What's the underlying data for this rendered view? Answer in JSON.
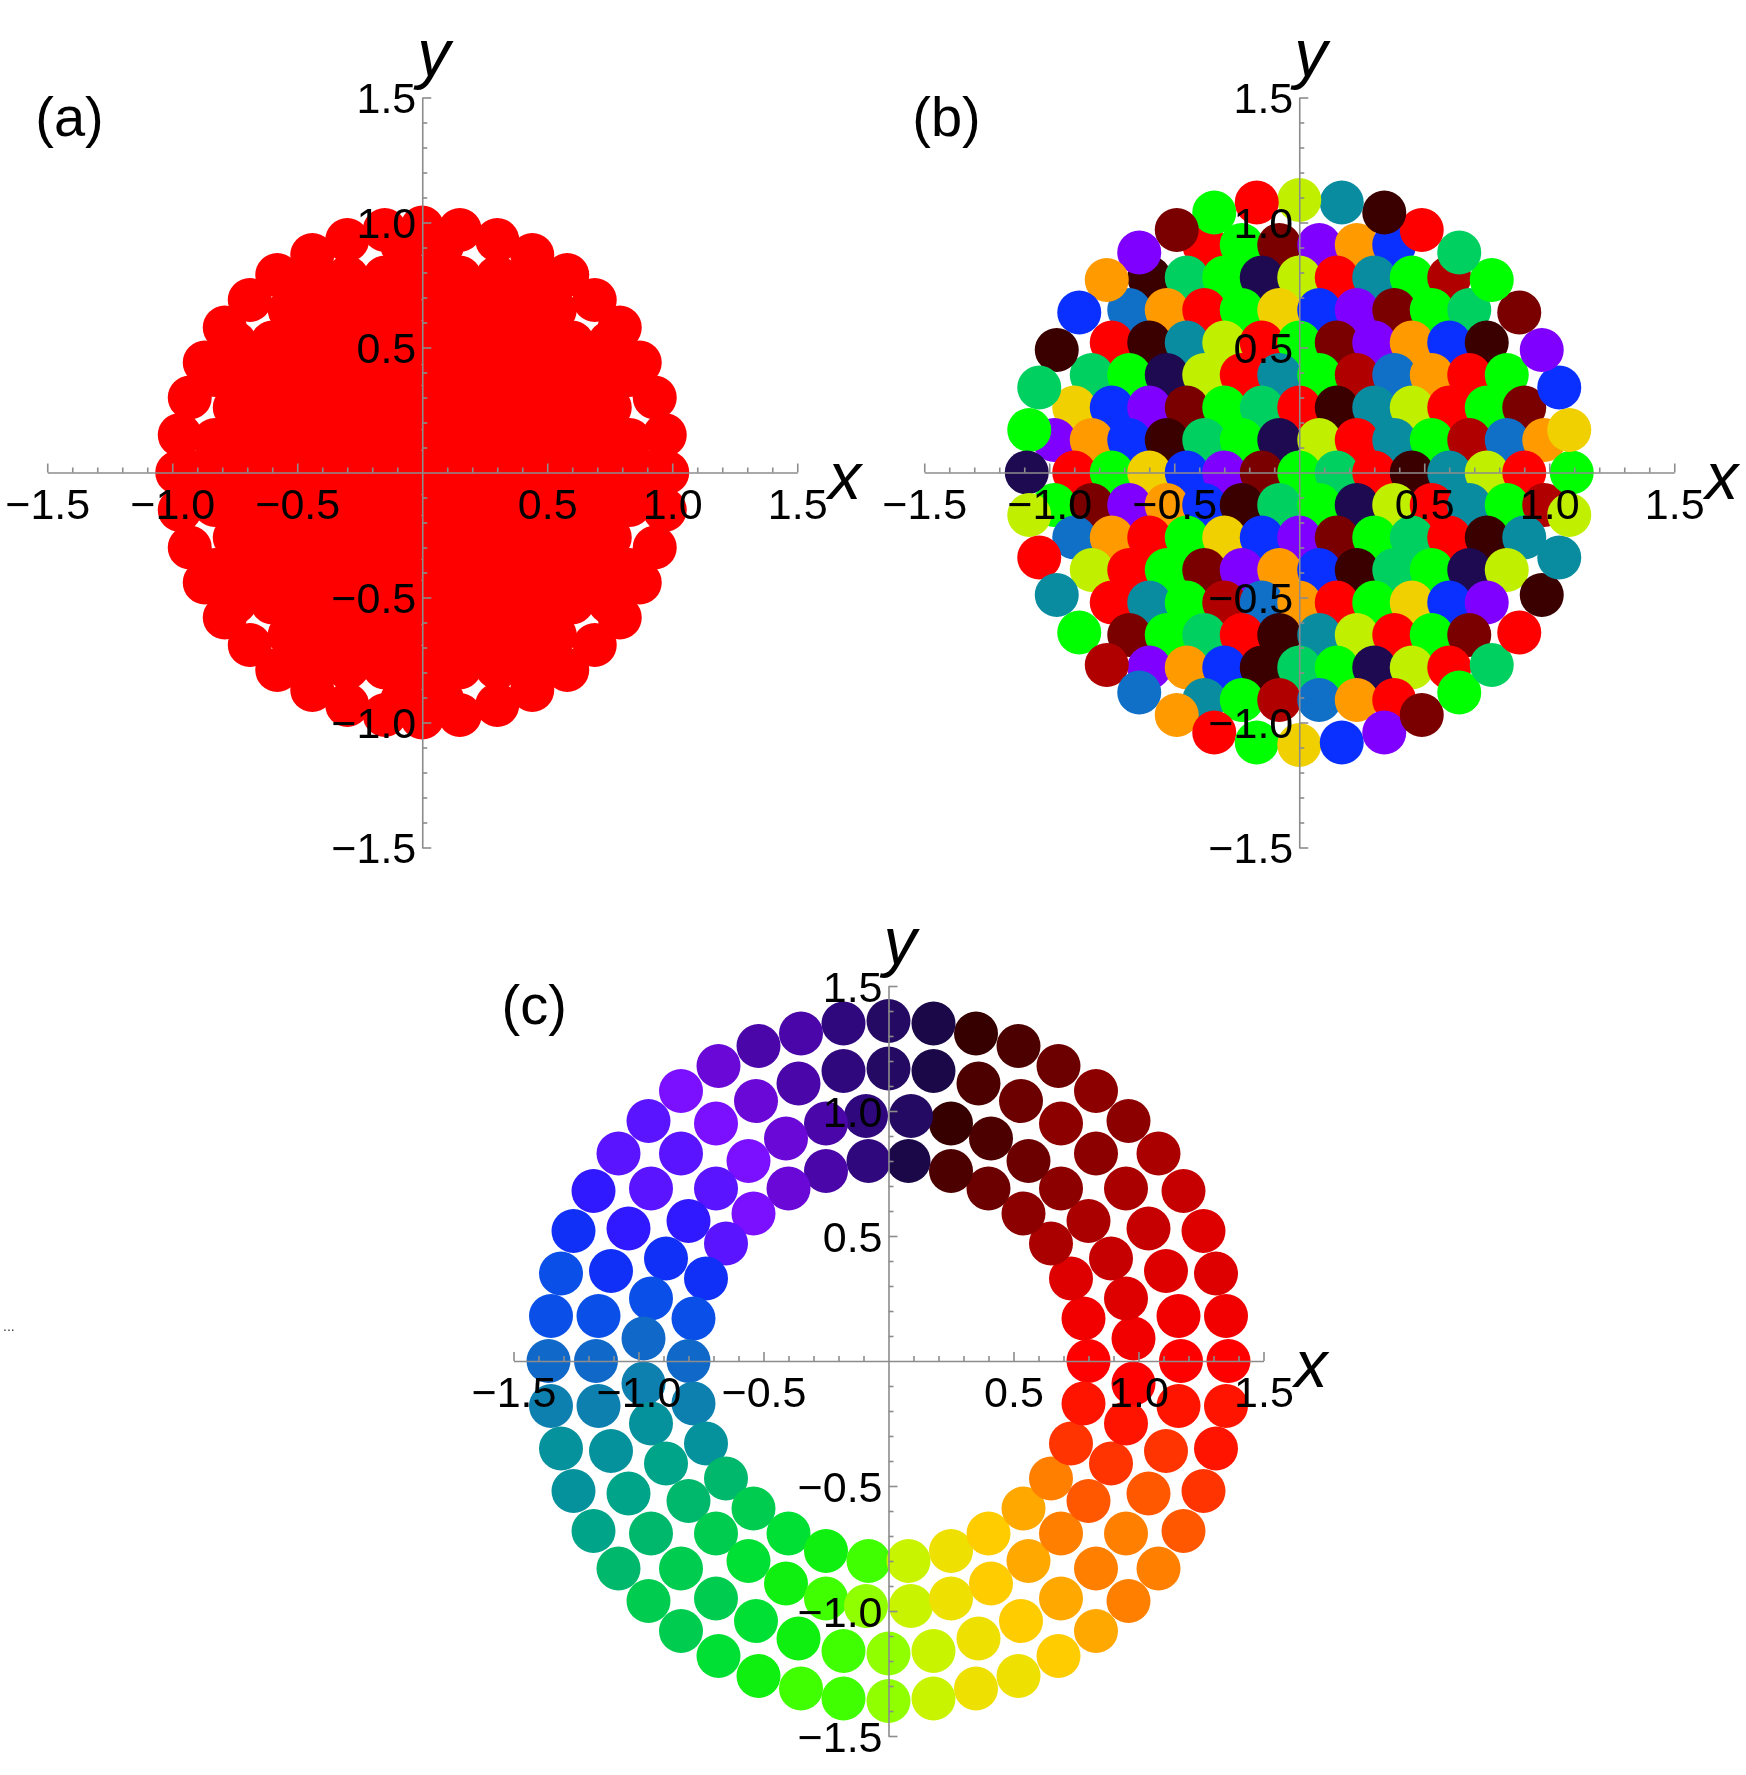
{
  "chart_data": [
    {
      "type": "scatter",
      "title": "(a)",
      "xlabel": "x",
      "ylabel": "y",
      "xlim": [
        -1.5,
        1.5
      ],
      "ylim": [
        -1.5,
        1.5
      ],
      "xticks": [
        {
          "value": -1.5,
          "label": "−1.5"
        },
        {
          "value": -1.4,
          "label": null
        },
        {
          "value": -1.3,
          "label": null
        },
        {
          "value": -1.2,
          "label": null
        },
        {
          "value": -1.1,
          "label": null
        },
        {
          "value": -1,
          "label": "−1.0"
        },
        {
          "value": -0.9,
          "label": null
        },
        {
          "value": -0.8,
          "label": null
        },
        {
          "value": -0.7,
          "label": null
        },
        {
          "value": -0.6,
          "label": null
        },
        {
          "value": -0.5,
          "label": "−0.5"
        },
        {
          "value": -0.4,
          "label": null
        },
        {
          "value": -0.3,
          "label": null
        },
        {
          "value": -0.2,
          "label": null
        },
        {
          "value": -0.1,
          "label": null
        },
        {
          "value": 0.1,
          "label": null
        },
        {
          "value": 0.2,
          "label": null
        },
        {
          "value": 0.3,
          "label": null
        },
        {
          "value": 0.4,
          "label": null
        },
        {
          "value": 0.5,
          "label": "0.5"
        },
        {
          "value": 0.6,
          "label": null
        },
        {
          "value": 0.7,
          "label": null
        },
        {
          "value": 0.8,
          "label": null
        },
        {
          "value": 0.9,
          "label": null
        },
        {
          "value": 1,
          "label": "1.0"
        },
        {
          "value": 1.1,
          "label": null
        },
        {
          "value": 1.2,
          "label": null
        },
        {
          "value": 1.3,
          "label": null
        },
        {
          "value": 1.4,
          "label": null
        },
        {
          "value": 1.5,
          "label": "1.5"
        }
      ],
      "yticks": [
        {
          "value": -1.5,
          "label": "−1.5"
        },
        {
          "value": -1.4,
          "label": null
        },
        {
          "value": -1.3,
          "label": null
        },
        {
          "value": -1.2,
          "label": null
        },
        {
          "value": -1.1,
          "label": null
        },
        {
          "value": -1,
          "label": "−1.0"
        },
        {
          "value": -0.9,
          "label": null
        },
        {
          "value": -0.8,
          "label": null
        },
        {
          "value": -0.7,
          "label": null
        },
        {
          "value": -0.6,
          "label": null
        },
        {
          "value": -0.5,
          "label": "−0.5"
        },
        {
          "value": -0.4,
          "label": null
        },
        {
          "value": -0.3,
          "label": null
        },
        {
          "value": -0.2,
          "label": null
        },
        {
          "value": -0.1,
          "label": null
        },
        {
          "value": 0.1,
          "label": null
        },
        {
          "value": 0.2,
          "label": null
        },
        {
          "value": 0.3,
          "label": null
        },
        {
          "value": 0.4,
          "label": null
        },
        {
          "value": 0.5,
          "label": "0.5"
        },
        {
          "value": 0.6,
          "label": null
        },
        {
          "value": 0.7,
          "label": null
        },
        {
          "value": 0.8,
          "label": null
        },
        {
          "value": 0.9,
          "label": null
        },
        {
          "value": 1,
          "label": "1.0"
        },
        {
          "value": 1.1,
          "label": null
        },
        {
          "value": 1.2,
          "label": null
        },
        {
          "value": 1.3,
          "label": null
        },
        {
          "value": 1.4,
          "label": null
        },
        {
          "value": 1.5,
          "label": "1.5"
        }
      ],
      "marker": "circle",
      "color": "#ff0000",
      "x": [
        -0.08,
        0.08,
        -0.45,
        -0.3,
        -0.15,
        0,
        0.15,
        0.3,
        0.45,
        -0.53,
        -0.38,
        -0.23,
        -0.08,
        0.08,
        0.23,
        0.38,
        0.53,
        -0.75,
        -0.6,
        -0.45,
        -0.3,
        -0.15,
        0,
        0.15,
        0.3,
        0.45,
        0.6,
        0.75,
        -0.83,
        -0.68,
        -0.53,
        -0.38,
        -0.23,
        -0.08,
        0.08,
        0.23,
        0.38,
        0.53,
        0.68,
        0.83,
        -0.75,
        -0.6,
        -0.45,
        -0.3,
        -0.15,
        0,
        0.15,
        0.3,
        0.45,
        0.6,
        0.75,
        -0.83,
        -0.68,
        -0.53,
        -0.38,
        -0.23,
        -0.08,
        0.08,
        0.23,
        0.38,
        0.53,
        0.68,
        0.83,
        -0.9,
        -0.75,
        -0.6,
        -0.45,
        -0.3,
        -0.15,
        0,
        0.15,
        0.3,
        0.45,
        0.6,
        0.75,
        0.9,
        -0.83,
        -0.68,
        -0.53,
        -0.38,
        -0.23,
        -0.08,
        0.08,
        0.23,
        0.38,
        0.53,
        0.68,
        0.83,
        -0.75,
        -0.6,
        -0.45,
        -0.3,
        -0.15,
        0,
        0.15,
        0.3,
        0.45,
        0.6,
        0.75,
        -0.83,
        -0.68,
        -0.53,
        -0.38,
        -0.23,
        -0.08,
        0.08,
        0.23,
        0.38,
        0.53,
        0.68,
        0.83,
        -0.75,
        -0.6,
        -0.45,
        -0.3,
        -0.15,
        0,
        0.15,
        0.3,
        0.45,
        0.6,
        0.75,
        -0.53,
        -0.38,
        -0.23,
        -0.08,
        0.08,
        0.23,
        0.38,
        0.53,
        -0.45,
        -0.3,
        -0.15,
        0,
        0.15,
        0.3,
        0.45,
        -0.08,
        0.08,
        0.98,
        0.97,
        0.93,
        0.87,
        0.79,
        0.69,
        0.58,
        0.44,
        0.3,
        0.15,
        0,
        -0.15,
        -0.3,
        -0.44,
        -0.58,
        -0.69,
        -0.79,
        -0.87,
        -0.93,
        -0.97,
        -0.98,
        -0.97,
        -0.93,
        -0.87,
        -0.79,
        -0.69,
        -0.58,
        -0.44,
        -0.3,
        -0.15,
        0,
        0.15,
        0.3,
        0.44,
        0.58,
        0.69,
        0.79,
        0.87,
        0.93,
        0.97
      ],
      "values": [
        0.91,
        0.91,
        0.78,
        0.78,
        0.78,
        0.78,
        0.78,
        0.78,
        0.78,
        0.65,
        0.65,
        0.65,
        0.65,
        0.65,
        0.65,
        0.65,
        0.65,
        0.52,
        0.52,
        0.52,
        0.52,
        0.52,
        0.52,
        0.52,
        0.52,
        0.52,
        0.52,
        0.52,
        0.39,
        0.39,
        0.39,
        0.39,
        0.39,
        0.39,
        0.39,
        0.39,
        0.39,
        0.39,
        0.39,
        0.39,
        0.26,
        0.26,
        0.26,
        0.26,
        0.26,
        0.26,
        0.26,
        0.26,
        0.26,
        0.26,
        0.26,
        0.13,
        0.13,
        0.13,
        0.13,
        0.13,
        0.13,
        0.13,
        0.13,
        0.13,
        0.13,
        0.13,
        0.13,
        0,
        0,
        0,
        0,
        0,
        0,
        0,
        0,
        0,
        0,
        0,
        0,
        0,
        -0.13,
        -0.13,
        -0.13,
        -0.13,
        -0.13,
        -0.13,
        -0.13,
        -0.13,
        -0.13,
        -0.13,
        -0.13,
        -0.13,
        -0.26,
        -0.26,
        -0.26,
        -0.26,
        -0.26,
        -0.26,
        -0.26,
        -0.26,
        -0.26,
        -0.26,
        -0.26,
        -0.39,
        -0.39,
        -0.39,
        -0.39,
        -0.39,
        -0.39,
        -0.39,
        -0.39,
        -0.39,
        -0.39,
        -0.39,
        -0.39,
        -0.52,
        -0.52,
        -0.52,
        -0.52,
        -0.52,
        -0.52,
        -0.52,
        -0.52,
        -0.52,
        -0.52,
        -0.52,
        -0.65,
        -0.65,
        -0.65,
        -0.65,
        -0.65,
        -0.65,
        -0.65,
        -0.65,
        -0.78,
        -0.78,
        -0.78,
        -0.78,
        -0.78,
        -0.78,
        -0.78,
        -0.91,
        -0.91,
        0,
        0.15,
        0.3,
        0.44,
        0.58,
        0.69,
        0.79,
        0.87,
        0.93,
        0.97,
        0.98,
        0.97,
        0.93,
        0.87,
        0.79,
        0.69,
        0.58,
        0.44,
        0.3,
        0.15,
        0,
        -0.15,
        -0.3,
        -0.44,
        -0.58,
        -0.69,
        -0.79,
        -0.87,
        -0.93,
        -0.97,
        -0.98,
        -0.97,
        -0.93,
        -0.87,
        -0.79,
        -0.69,
        -0.58,
        -0.44,
        -0.3,
        -0.15
      ]
    },
    {
      "type": "scatter",
      "title": "(b)",
      "xlabel": "x",
      "ylabel": "y",
      "xlim": [
        -1.5,
        1.5
      ],
      "ylim": [
        -1.5,
        1.5
      ],
      "xticks": [
        {
          "value": -1.5,
          "label": "−1.5"
        },
        {
          "value": -1.4,
          "label": null
        },
        {
          "value": -1.3,
          "label": null
        },
        {
          "value": -1.2,
          "label": null
        },
        {
          "value": -1.1,
          "label": null
        },
        {
          "value": -1,
          "label": "−1.0"
        },
        {
          "value": -0.9,
          "label": null
        },
        {
          "value": -0.8,
          "label": null
        },
        {
          "value": -0.7,
          "label": null
        },
        {
          "value": -0.6,
          "label": null
        },
        {
          "value": -0.5,
          "label": "−0.5"
        },
        {
          "value": -0.4,
          "label": null
        },
        {
          "value": -0.3,
          "label": null
        },
        {
          "value": -0.2,
          "label": null
        },
        {
          "value": -0.1,
          "label": null
        },
        {
          "value": 0.1,
          "label": null
        },
        {
          "value": 0.2,
          "label": null
        },
        {
          "value": 0.3,
          "label": null
        },
        {
          "value": 0.4,
          "label": null
        },
        {
          "value": 0.5,
          "label": "0.5"
        },
        {
          "value": 0.6,
          "label": null
        },
        {
          "value": 0.7,
          "label": null
        },
        {
          "value": 0.8,
          "label": null
        },
        {
          "value": 0.9,
          "label": null
        },
        {
          "value": 1,
          "label": "1.0"
        },
        {
          "value": 1.1,
          "label": null
        },
        {
          "value": 1.2,
          "label": null
        },
        {
          "value": 1.3,
          "label": null
        },
        {
          "value": 1.4,
          "label": null
        },
        {
          "value": 1.5,
          "label": "1.5"
        }
      ],
      "yticks": [
        {
          "value": -1.5,
          "label": "−1.5"
        },
        {
          "value": -1.4,
          "label": null
        },
        {
          "value": -1.3,
          "label": null
        },
        {
          "value": -1.2,
          "label": null
        },
        {
          "value": -1.1,
          "label": null
        },
        {
          "value": -1,
          "label": "−1.0"
        },
        {
          "value": -0.9,
          "label": null
        },
        {
          "value": -0.8,
          "label": null
        },
        {
          "value": -0.7,
          "label": null
        },
        {
          "value": -0.6,
          "label": null
        },
        {
          "value": -0.5,
          "label": "−0.5"
        },
        {
          "value": -0.4,
          "label": null
        },
        {
          "value": -0.3,
          "label": null
        },
        {
          "value": -0.2,
          "label": null
        },
        {
          "value": -0.1,
          "label": null
        },
        {
          "value": 0.1,
          "label": null
        },
        {
          "value": 0.2,
          "label": null
        },
        {
          "value": 0.3,
          "label": null
        },
        {
          "value": 0.4,
          "label": null
        },
        {
          "value": 0.5,
          "label": "0.5"
        },
        {
          "value": 0.6,
          "label": null
        },
        {
          "value": 0.7,
          "label": null
        },
        {
          "value": 0.8,
          "label": null
        },
        {
          "value": 0.9,
          "label": null
        },
        {
          "value": 1,
          "label": "1.0"
        },
        {
          "value": 1.1,
          "label": null
        },
        {
          "value": 1.2,
          "label": null
        },
        {
          "value": 1.3,
          "label": null
        },
        {
          "value": 1.4,
          "label": null
        },
        {
          "value": 1.5,
          "label": "1.5"
        }
      ],
      "marker": "circle",
      "x": [
        -0.38,
        -0.23,
        -0.08,
        0.08,
        0.23,
        0.38,
        -0.6,
        -0.45,
        -0.3,
        -0.15,
        0,
        0.15,
        0.3,
        0.45,
        0.6,
        -0.68,
        -0.53,
        -0.38,
        -0.23,
        -0.08,
        0.08,
        0.23,
        0.38,
        0.53,
        0.68,
        -0.75,
        -0.6,
        -0.45,
        -0.3,
        -0.15,
        0,
        0.15,
        0.3,
        0.45,
        0.6,
        0.75,
        -0.83,
        -0.68,
        -0.53,
        -0.38,
        -0.23,
        -0.08,
        0.08,
        0.23,
        0.38,
        0.53,
        0.68,
        0.83,
        -0.9,
        -0.75,
        -0.6,
        -0.45,
        -0.3,
        -0.15,
        0,
        0.15,
        0.3,
        0.45,
        0.6,
        0.75,
        0.9,
        -0.98,
        -0.83,
        -0.68,
        -0.53,
        -0.38,
        -0.23,
        -0.08,
        0.08,
        0.23,
        0.38,
        0.53,
        0.68,
        0.83,
        0.98,
        -0.9,
        -0.75,
        -0.6,
        -0.45,
        -0.3,
        -0.15,
        0,
        0.15,
        0.3,
        0.45,
        0.6,
        0.75,
        0.9,
        -0.98,
        -0.83,
        -0.68,
        -0.53,
        -0.38,
        -0.23,
        -0.08,
        0.08,
        0.23,
        0.38,
        0.53,
        0.68,
        0.83,
        0.98,
        -0.9,
        -0.75,
        -0.6,
        -0.45,
        -0.3,
        -0.15,
        0,
        0.15,
        0.3,
        0.45,
        0.6,
        0.75,
        0.9,
        -0.83,
        -0.68,
        -0.53,
        -0.38,
        -0.23,
        -0.08,
        0.08,
        0.23,
        0.38,
        0.53,
        0.68,
        0.83,
        -0.75,
        -0.6,
        -0.45,
        -0.3,
        -0.15,
        0,
        0.15,
        0.3,
        0.45,
        0.6,
        0.75,
        -0.68,
        -0.53,
        -0.38,
        -0.23,
        -0.08,
        0.08,
        0.23,
        0.38,
        0.53,
        0.68,
        -0.6,
        -0.45,
        -0.3,
        -0.15,
        0,
        0.15,
        0.3,
        0.45,
        0.6,
        -0.38,
        -0.23,
        -0.08,
        0.08,
        0.23,
        0.38,
        1.09,
        1.08,
        1.04,
        0.97,
        0.88,
        0.77,
        0.64,
        0.49,
        0.34,
        0.17,
        0,
        -0.17,
        -0.34,
        -0.49,
        -0.64,
        -0.77,
        -0.88,
        -0.97,
        -1.04,
        -1.08,
        -1.09,
        -1.08,
        -1.04,
        -0.97,
        -0.88,
        -0.77,
        -0.64,
        -0.49,
        -0.34,
        -0.17,
        0,
        0.17,
        0.34,
        0.49,
        0.64,
        0.77,
        0.88,
        0.97,
        1.04,
        1.08
      ],
      "values": [
        0.91,
        0.91,
        0.91,
        0.91,
        0.91,
        0.91,
        0.78,
        0.78,
        0.78,
        0.78,
        0.78,
        0.78,
        0.78,
        0.78,
        0.78,
        0.65,
        0.65,
        0.65,
        0.65,
        0.65,
        0.65,
        0.65,
        0.65,
        0.65,
        0.65,
        0.52,
        0.52,
        0.52,
        0.52,
        0.52,
        0.52,
        0.52,
        0.52,
        0.52,
        0.52,
        0.52,
        0.39,
        0.39,
        0.39,
        0.39,
        0.39,
        0.39,
        0.39,
        0.39,
        0.39,
        0.39,
        0.39,
        0.39,
        0.26,
        0.26,
        0.26,
        0.26,
        0.26,
        0.26,
        0.26,
        0.26,
        0.26,
        0.26,
        0.26,
        0.26,
        0.26,
        0.13,
        0.13,
        0.13,
        0.13,
        0.13,
        0.13,
        0.13,
        0.13,
        0.13,
        0.13,
        0.13,
        0.13,
        0.13,
        0.13,
        0,
        0,
        0,
        0,
        0,
        0,
        0,
        0,
        0,
        0,
        0,
        0,
        0,
        -0.13,
        -0.13,
        -0.13,
        -0.13,
        -0.13,
        -0.13,
        -0.13,
        -0.13,
        -0.13,
        -0.13,
        -0.13,
        -0.13,
        -0.13,
        -0.13,
        -0.26,
        -0.26,
        -0.26,
        -0.26,
        -0.26,
        -0.26,
        -0.26,
        -0.26,
        -0.26,
        -0.26,
        -0.26,
        -0.26,
        -0.26,
        -0.39,
        -0.39,
        -0.39,
        -0.39,
        -0.39,
        -0.39,
        -0.39,
        -0.39,
        -0.39,
        -0.39,
        -0.39,
        -0.39,
        -0.52,
        -0.52,
        -0.52,
        -0.52,
        -0.52,
        -0.52,
        -0.52,
        -0.52,
        -0.52,
        -0.52,
        -0.52,
        -0.65,
        -0.65,
        -0.65,
        -0.65,
        -0.65,
        -0.65,
        -0.65,
        -0.65,
        -0.65,
        -0.65,
        -0.78,
        -0.78,
        -0.78,
        -0.78,
        -0.78,
        -0.78,
        -0.78,
        -0.78,
        -0.78,
        -0.91,
        -0.91,
        -0.91,
        -0.91,
        -0.91,
        -0.91,
        0,
        0.17,
        0.34,
        0.49,
        0.64,
        0.77,
        0.88,
        0.97,
        1.04,
        1.08,
        1.09,
        1.08,
        1.04,
        0.97,
        0.88,
        0.77,
        0.64,
        0.49,
        0.34,
        0.17,
        0,
        -0.17,
        -0.34,
        -0.49,
        -0.64,
        -0.77,
        -0.88,
        -0.97,
        -1.04,
        -1.08,
        -1.09,
        -1.08,
        -1.04,
        -0.97,
        -0.88,
        -0.77,
        -0.64,
        -0.49,
        -0.34,
        -0.17
      ],
      "colors": [
        "#ff0000",
        "#00ff00",
        "#7a0000",
        "#8000ff",
        "#ff9a00",
        "#0a30ff",
        "#3a0000",
        "#00d060",
        "#00ff00",
        "#1e0a50",
        "#c0f000",
        "#ff0000",
        "#0a8ca0",
        "#00ff00",
        "#b00000",
        "#1070c8",
        "#ff9a00",
        "#ff0000",
        "#00ff00",
        "#f0d000",
        "#0a30ff",
        "#8000ff",
        "#7a0000",
        "#00ff00",
        "#00d060",
        "#ff0000",
        "#3a0000",
        "#0a8ca0",
        "#c0f000",
        "#ff0000",
        "#00ff00",
        "#7a0000",
        "#8000ff",
        "#ff9a00",
        "#0a30ff",
        "#3a0000",
        "#00d060",
        "#00ff00",
        "#1e0a50",
        "#c0f000",
        "#ff0000",
        "#0a8ca0",
        "#00ff00",
        "#b00000",
        "#1070c8",
        "#ff9a00",
        "#ff0000",
        "#00ff00",
        "#f0d000",
        "#0a30ff",
        "#8000ff",
        "#7a0000",
        "#00ff00",
        "#00d060",
        "#ff0000",
        "#3a0000",
        "#0a8ca0",
        "#c0f000",
        "#ff0000",
        "#00ff00",
        "#7a0000",
        "#8000ff",
        "#ff9a00",
        "#0a30ff",
        "#3a0000",
        "#00d060",
        "#00ff00",
        "#1e0a50",
        "#c0f000",
        "#ff0000",
        "#0a8ca0",
        "#00ff00",
        "#b00000",
        "#1070c8",
        "#ff9a00",
        "#ff0000",
        "#00ff00",
        "#f0d000",
        "#0a30ff",
        "#8000ff",
        "#7a0000",
        "#00ff00",
        "#00d060",
        "#ff0000",
        "#3a0000",
        "#0a8ca0",
        "#c0f000",
        "#ff0000",
        "#00ff00",
        "#7a0000",
        "#8000ff",
        "#ff9a00",
        "#0a30ff",
        "#3a0000",
        "#00d060",
        "#00ff00",
        "#1e0a50",
        "#c0f000",
        "#ff0000",
        "#0a8ca0",
        "#00ff00",
        "#b00000",
        "#1070c8",
        "#ff9a00",
        "#ff0000",
        "#00ff00",
        "#f0d000",
        "#0a30ff",
        "#8000ff",
        "#7a0000",
        "#00ff00",
        "#00d060",
        "#ff0000",
        "#3a0000",
        "#0a8ca0",
        "#c0f000",
        "#ff0000",
        "#00ff00",
        "#7a0000",
        "#8000ff",
        "#ff9a00",
        "#0a30ff",
        "#3a0000",
        "#00d060",
        "#00ff00",
        "#1e0a50",
        "#c0f000",
        "#ff0000",
        "#0a8ca0",
        "#00ff00",
        "#b00000",
        "#1070c8",
        "#ff9a00",
        "#ff0000",
        "#00ff00",
        "#f0d000",
        "#0a30ff",
        "#8000ff",
        "#7a0000",
        "#00ff00",
        "#00d060",
        "#ff0000",
        "#3a0000",
        "#0a8ca0",
        "#c0f000",
        "#ff0000",
        "#00ff00",
        "#7a0000",
        "#8000ff",
        "#ff9a00",
        "#0a30ff",
        "#3a0000",
        "#00d060",
        "#00ff00",
        "#1e0a50",
        "#c0f000",
        "#ff0000",
        "#0a8ca0",
        "#00ff00",
        "#b00000",
        "#1070c8",
        "#ff9a00",
        "#ff0000",
        "#00ff00",
        "#f0d000",
        "#0a30ff",
        "#8000ff",
        "#7a0000",
        "#00ff00",
        "#00d060",
        "#ff0000",
        "#3a0000",
        "#0a8ca0",
        "#c0f000",
        "#ff0000",
        "#00ff00",
        "#7a0000",
        "#8000ff",
        "#ff9a00",
        "#0a30ff",
        "#3a0000",
        "#00d060",
        "#00ff00",
        "#1e0a50",
        "#c0f000",
        "#ff0000",
        "#0a8ca0",
        "#00ff00",
        "#b00000",
        "#1070c8",
        "#ff9a00",
        "#ff0000",
        "#00ff00",
        "#f0d000",
        "#0a30ff",
        "#8000ff",
        "#7a0000",
        "#00ff00",
        "#00d060",
        "#ff0000",
        "#3a0000",
        "#0a8ca0",
        "#c0f000"
      ]
    },
    {
      "type": "scatter",
      "title": "(c)",
      "xlabel": "x",
      "ylabel": "y",
      "xlim": [
        -1.5,
        1.5
      ],
      "ylim": [
        -1.5,
        1.5
      ],
      "xticks": [
        {
          "value": -1.5,
          "label": "−1.5"
        },
        {
          "value": -1.4,
          "label": null
        },
        {
          "value": -1.3,
          "label": null
        },
        {
          "value": -1.2,
          "label": null
        },
        {
          "value": -1.1,
          "label": null
        },
        {
          "value": -1,
          "label": "−1.0"
        },
        {
          "value": -0.9,
          "label": null
        },
        {
          "value": -0.8,
          "label": null
        },
        {
          "value": -0.7,
          "label": null
        },
        {
          "value": -0.6,
          "label": null
        },
        {
          "value": -0.5,
          "label": "−0.5"
        },
        {
          "value": -0.4,
          "label": null
        },
        {
          "value": -0.3,
          "label": null
        },
        {
          "value": -0.2,
          "label": null
        },
        {
          "value": -0.1,
          "label": null
        },
        {
          "value": 0.1,
          "label": null
        },
        {
          "value": 0.2,
          "label": null
        },
        {
          "value": 0.3,
          "label": null
        },
        {
          "value": 0.4,
          "label": null
        },
        {
          "value": 0.5,
          "label": "0.5"
        },
        {
          "value": 0.6,
          "label": null
        },
        {
          "value": 0.7,
          "label": null
        },
        {
          "value": 0.8,
          "label": null
        },
        {
          "value": 0.9,
          "label": null
        },
        {
          "value": 1,
          "label": "1.0"
        },
        {
          "value": 1.1,
          "label": null
        },
        {
          "value": 1.2,
          "label": null
        },
        {
          "value": 1.3,
          "label": null
        },
        {
          "value": 1.4,
          "label": null
        },
        {
          "value": 1.5,
          "label": "1.5"
        }
      ],
      "yticks": [
        {
          "value": -1.5,
          "label": "−1.5"
        },
        {
          "value": -1.4,
          "label": null
        },
        {
          "value": -1.3,
          "label": null
        },
        {
          "value": -1.2,
          "label": null
        },
        {
          "value": -1.1,
          "label": null
        },
        {
          "value": -1,
          "label": "−1.0"
        },
        {
          "value": -0.9,
          "label": null
        },
        {
          "value": -0.8,
          "label": null
        },
        {
          "value": -0.7,
          "label": null
        },
        {
          "value": -0.6,
          "label": null
        },
        {
          "value": -0.5,
          "label": "−0.5"
        },
        {
          "value": -0.4,
          "label": null
        },
        {
          "value": -0.3,
          "label": null
        },
        {
          "value": -0.2,
          "label": null
        },
        {
          "value": -0.1,
          "label": null
        },
        {
          "value": 0.1,
          "label": null
        },
        {
          "value": 0.2,
          "label": null
        },
        {
          "value": 0.3,
          "label": null
        },
        {
          "value": 0.4,
          "label": null
        },
        {
          "value": 0.5,
          "label": "0.5"
        },
        {
          "value": 0.6,
          "label": null
        },
        {
          "value": 0.7,
          "label": null
        },
        {
          "value": 0.8,
          "label": null
        },
        {
          "value": 0.9,
          "label": null
        },
        {
          "value": 1,
          "label": "1.0"
        },
        {
          "value": 1.1,
          "label": null
        },
        {
          "value": 1.2,
          "label": null
        },
        {
          "value": 1.3,
          "label": null
        },
        {
          "value": 1.4,
          "label": null
        },
        {
          "value": 1.5,
          "label": "1.5"
        }
      ],
      "marker": "circle",
      "annotations": [
        "..."
      ],
      "x": [
        0.8,
        0.78,
        0.73,
        0.65,
        0.54,
        0.4,
        0.25,
        0.08,
        -0.08,
        -0.25,
        -0.4,
        -0.54,
        -0.65,
        -0.73,
        -0.78,
        -0.8,
        -0.78,
        -0.73,
        -0.65,
        -0.54,
        -0.4,
        -0.25,
        -0.08,
        0.08,
        0.25,
        0.4,
        0.54,
        0.65,
        0.73,
        0.78,
        0.98,
        0.95,
        0.89,
        0.8,
        0.69,
        0.56,
        0.41,
        0.25,
        0.09,
        -0.09,
        -0.25,
        -0.41,
        -0.56,
        -0.69,
        -0.8,
        -0.89,
        -0.95,
        -0.98,
        -0.98,
        -0.95,
        -0.89,
        -0.8,
        -0.69,
        -0.56,
        -0.41,
        -0.25,
        -0.09,
        0.09,
        0.25,
        0.41,
        0.56,
        0.69,
        0.8,
        0.89,
        0.95,
        0.98,
        1.17,
        1.16,
        1.11,
        1.04,
        0.95,
        0.83,
        0.69,
        0.53,
        0.36,
        0.18,
        0,
        -0.18,
        -0.36,
        -0.53,
        -0.69,
        -0.83,
        -0.95,
        -1.04,
        -1.11,
        -1.16,
        -1.17,
        -1.16,
        -1.11,
        -1.04,
        -0.95,
        -0.83,
        -0.69,
        -0.53,
        -0.36,
        -0.18,
        0,
        0.18,
        0.36,
        0.53,
        0.69,
        0.83,
        0.95,
        1.04,
        1.11,
        1.16,
        1.36,
        1.35,
        1.31,
        1.26,
        1.18,
        1.08,
        0.96,
        0.83,
        0.68,
        0.52,
        0.35,
        0.18,
        0,
        -0.18,
        -0.35,
        -0.52,
        -0.68,
        -0.83,
        -0.96,
        -1.08,
        -1.18,
        -1.26,
        -1.31,
        -1.35,
        -1.36,
        -1.35,
        -1.31,
        -1.26,
        -1.18,
        -1.08,
        -0.96,
        -0.83,
        -0.68,
        -0.52,
        -0.35,
        -0.18,
        0,
        0.18,
        0.35,
        0.52,
        0.68,
        0.83,
        0.96,
        1.08,
        1.18,
        1.26,
        1.31,
        1.35
      ],
      "values": [
        0,
        0.17,
        0.33,
        0.47,
        0.59,
        0.69,
        0.76,
        0.8,
        0.8,
        0.76,
        0.69,
        0.59,
        0.47,
        0.33,
        0.17,
        0,
        -0.17,
        -0.33,
        -0.47,
        -0.59,
        -0.69,
        -0.76,
        -0.8,
        -0.8,
        -0.76,
        -0.69,
        -0.59,
        -0.47,
        -0.33,
        -0.17,
        0.09,
        0.25,
        0.41,
        0.56,
        0.69,
        0.8,
        0.89,
        0.95,
        0.98,
        0.98,
        0.95,
        0.89,
        0.8,
        0.69,
        0.56,
        0.41,
        0.25,
        0.09,
        -0.09,
        -0.25,
        -0.41,
        -0.56,
        -0.69,
        -0.8,
        -0.89,
        -0.95,
        -0.98,
        -0.98,
        -0.95,
        -0.89,
        -0.8,
        -0.69,
        -0.56,
        -0.41,
        -0.25,
        -0.09,
        0,
        0.18,
        0.36,
        0.53,
        0.69,
        0.83,
        0.95,
        1.04,
        1.11,
        1.16,
        1.17,
        1.16,
        1.11,
        1.04,
        0.95,
        0.83,
        0.69,
        0.53,
        0.36,
        0.18,
        0,
        -0.18,
        -0.36,
        -0.53,
        -0.69,
        -0.83,
        -0.95,
        -1.04,
        -1.11,
        -1.16,
        -1.17,
        -1.16,
        -1.11,
        -1.04,
        -0.95,
        -0.83,
        -0.69,
        -0.53,
        -0.36,
        -0.18,
        0,
        0.18,
        0.35,
        0.52,
        0.68,
        0.83,
        0.96,
        1.08,
        1.18,
        1.26,
        1.31,
        1.35,
        1.36,
        1.35,
        1.31,
        1.26,
        1.18,
        1.08,
        0.96,
        0.83,
        0.68,
        0.52,
        0.35,
        0.18,
        0,
        -0.18,
        -0.35,
        -0.52,
        -0.68,
        -0.83,
        -0.96,
        -1.08,
        -1.18,
        -1.26,
        -1.31,
        -1.35,
        -1.36,
        -1.35,
        -1.31,
        -1.26,
        -1.18,
        -1.08,
        -0.96,
        -0.83,
        -0.68,
        -0.52,
        -0.35,
        -0.18
      ],
      "colors": [
        "#ff0000",
        "#f20000",
        "#de0000",
        "#aa0000",
        "#8c0000",
        "#6c0000",
        "#4c0000",
        "#1a0848",
        "#30087e",
        "#4a06a8",
        "#6a08d8",
        "#7a10ff",
        "#5a14ff",
        "#1030f8",
        "#0a50e8",
        "#1068c8",
        "#0e80b0",
        "#06929c",
        "#00b86c",
        "#00cc50",
        "#00e034",
        "#10f010",
        "#40ff00",
        "#c8f400",
        "#eee000",
        "#ffcc00",
        "#ffa800",
        "#ff8000",
        "#ff3400",
        "#ff1400",
        "#f20000",
        "#de0000",
        "#c60000",
        "#aa0000",
        "#8c0000",
        "#6c0000",
        "#4c0000",
        "#360000",
        "#240a62",
        "#30087e",
        "#4a06a8",
        "#6a08d8",
        "#7a10ff",
        "#5a14ff",
        "#3018ff",
        "#1030f8",
        "#0a50e8",
        "#1068c8",
        "#0e80b0",
        "#06929c",
        "#00a488",
        "#00b86c",
        "#00cc50",
        "#00e034",
        "#10f010",
        "#40ff00",
        "#90ff00",
        "#c8f400",
        "#eee000",
        "#ffcc00",
        "#ffa800",
        "#ff8000",
        "#ff5800",
        "#ff3400",
        "#ff1400",
        "#ff0000",
        "#ff0000",
        "#f20000",
        "#de0000",
        "#c60000",
        "#aa0000",
        "#8c0000",
        "#8c0000",
        "#6c0000",
        "#4c0000",
        "#1a0848",
        "#240a62",
        "#30087e",
        "#4a06a8",
        "#6a08d8",
        "#7a10ff",
        "#5a14ff",
        "#5a14ff",
        "#3018ff",
        "#1030f8",
        "#0a50e8",
        "#1068c8",
        "#0e80b0",
        "#06929c",
        "#00a488",
        "#00b86c",
        "#00cc50",
        "#00cc50",
        "#00e034",
        "#10f010",
        "#40ff00",
        "#90ff00",
        "#c8f400",
        "#eee000",
        "#ffcc00",
        "#ffa800",
        "#ff8000",
        "#ff8000",
        "#ff5800",
        "#ff3400",
        "#ff1400",
        "#ff0000",
        "#f20000",
        "#de0000",
        "#de0000",
        "#c60000",
        "#aa0000",
        "#8c0000",
        "#8c0000",
        "#6c0000",
        "#4c0000",
        "#360000",
        "#1a0848",
        "#240a62",
        "#30087e",
        "#4a06a8",
        "#4a06a8",
        "#6a08d8",
        "#7a10ff",
        "#5a14ff",
        "#5a14ff",
        "#3018ff",
        "#1030f8",
        "#0a50e8",
        "#0a50e8",
        "#1068c8",
        "#0e80b0",
        "#06929c",
        "#06929c",
        "#00a488",
        "#00b86c",
        "#00cc50",
        "#00cc50",
        "#00e034",
        "#10f010",
        "#40ff00",
        "#40ff00",
        "#90ff00",
        "#c8f400",
        "#eee000",
        "#eee000",
        "#ffcc00",
        "#ffa800",
        "#ff8000",
        "#ff8000",
        "#ff5800",
        "#ff3400",
        "#ff1400",
        "#ff1400"
      ]
    }
  ]
}
